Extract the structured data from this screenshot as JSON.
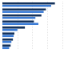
{
  "chart_data": {
    "type": "bar",
    "orientation": "horizontal",
    "categories": [
      null,
      null,
      null,
      null,
      null,
      null,
      null,
      null
    ],
    "series": [
      {
        "color": "#14325c",
        "values": [
          70,
          58,
          52,
          42,
          30,
          16,
          14,
          11
        ]
      },
      {
        "color": "#3a7bd5",
        "values": [
          65,
          55,
          44,
          48,
          20,
          15,
          12,
          9
        ]
      }
    ],
    "xlim": [
      0,
      80
    ],
    "xticks": [
      0,
      20,
      40,
      60,
      80
    ],
    "grid": true,
    "tick_labels": false
  }
}
